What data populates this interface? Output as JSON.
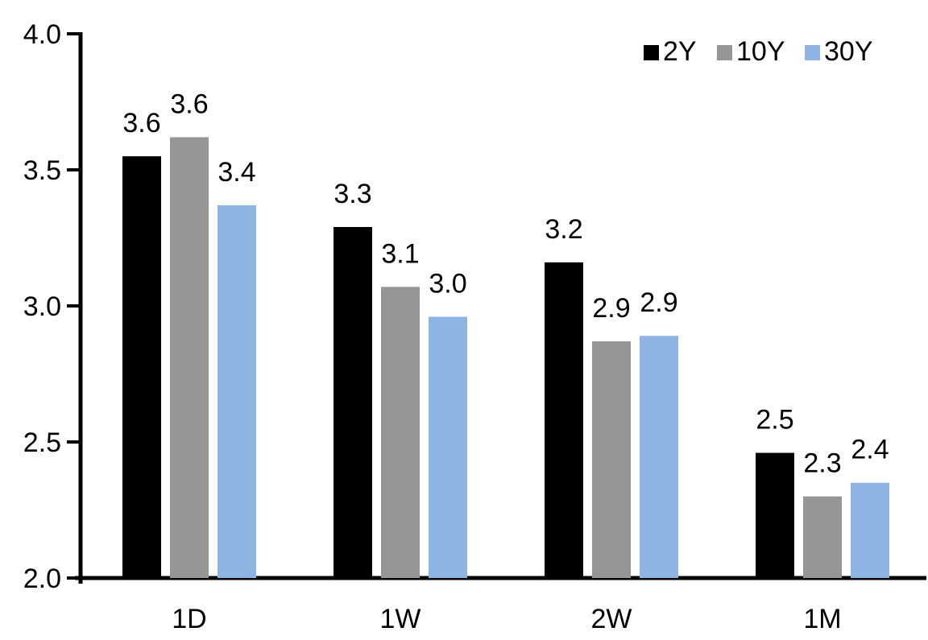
{
  "chart_data": {
    "type": "bar",
    "title": "",
    "xlabel": "",
    "ylabel": "",
    "categories": [
      "1D",
      "1W",
      "2W",
      "1M"
    ],
    "series": [
      {
        "name": "2Y",
        "color": "#000000",
        "values": [
          3.6,
          3.3,
          3.2,
          2.5
        ],
        "bar_heights": [
          3.55,
          3.29,
          3.16,
          2.46
        ]
      },
      {
        "name": "10Y",
        "color": "#969696",
        "values": [
          3.6,
          3.1,
          2.9,
          2.3
        ],
        "bar_heights": [
          3.62,
          3.07,
          2.87,
          2.3
        ]
      },
      {
        "name": "30Y",
        "color": "#8DB4E2",
        "values": [
          3.4,
          3.0,
          2.9,
          2.4
        ],
        "bar_heights": [
          3.37,
          2.96,
          2.89,
          2.35
        ]
      }
    ],
    "value_labels": [
      [
        "3.6",
        "3.3",
        "3.2",
        "2.5"
      ],
      [
        "3.6",
        "3.1",
        "2.9",
        "2.3"
      ],
      [
        "3.4",
        "3.0",
        "2.9",
        "2.4"
      ]
    ],
    "ylim": [
      2.0,
      4.0
    ],
    "y_ticks": [
      4.0,
      3.5,
      3.0,
      2.5,
      2.0
    ],
    "y_tick_labels": [
      "4.0",
      "3.5",
      "3.0",
      "2.5",
      "2.0"
    ],
    "grid": false,
    "legend_position": "top-right",
    "colors": {
      "axis": "#000000",
      "text": "#000000",
      "background": "#FFFFFF"
    }
  }
}
